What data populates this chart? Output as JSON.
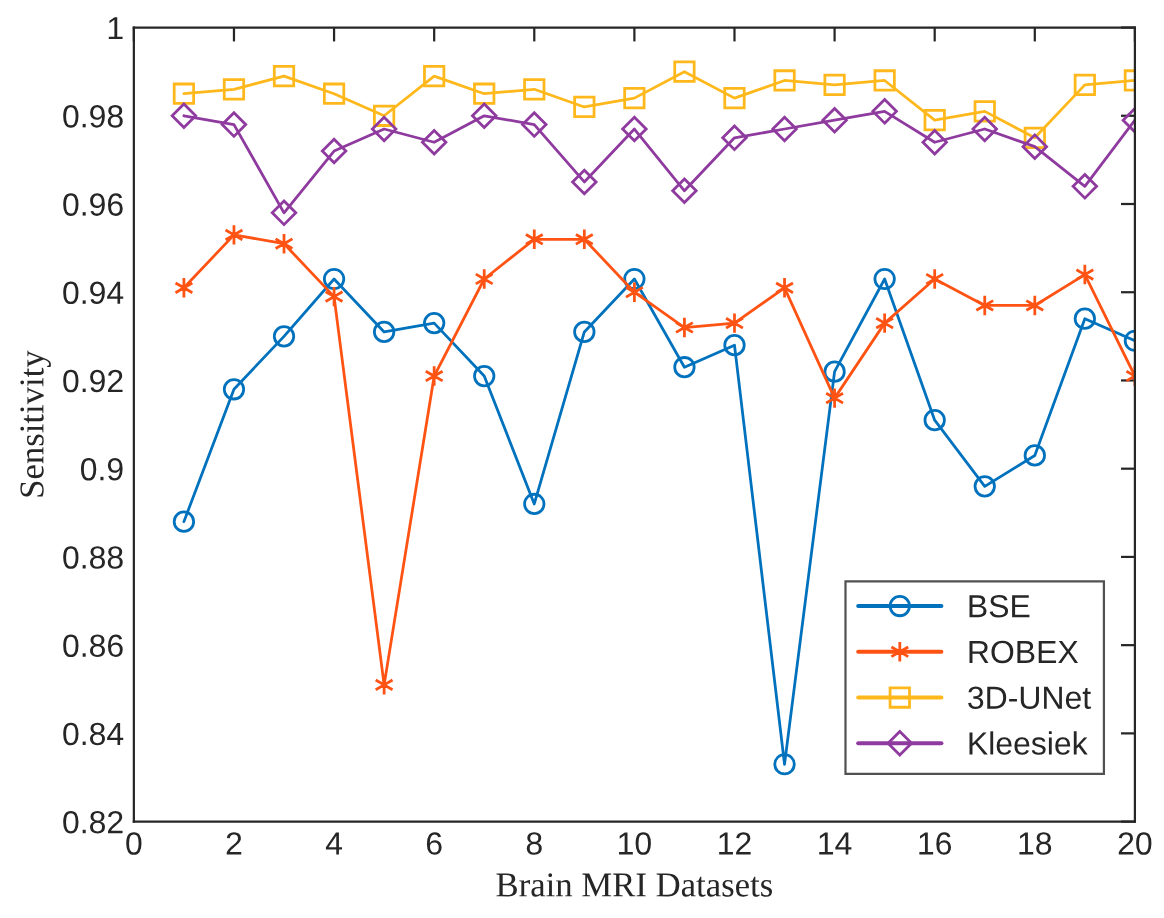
{
  "chart_data": {
    "type": "line",
    "xlabel": "Brain MRI Datasets",
    "ylabel": "Sensitivity",
    "x": [
      1,
      2,
      3,
      4,
      5,
      6,
      7,
      8,
      9,
      10,
      11,
      12,
      13,
      14,
      15,
      16,
      17,
      18,
      19,
      20
    ],
    "series": [
      {
        "name": "BSE",
        "color": "#0072bd",
        "marker": "circle",
        "values": [
          0.888,
          0.918,
          0.93,
          0.943,
          0.931,
          0.933,
          0.921,
          0.892,
          0.931,
          0.943,
          0.923,
          0.928,
          0.833,
          0.922,
          0.943,
          0.911,
          0.896,
          0.903,
          0.934,
          0.929
        ]
      },
      {
        "name": "ROBEX",
        "color": "#ff5314",
        "marker": "cross",
        "values": [
          0.941,
          0.953,
          0.951,
          0.939,
          0.851,
          0.921,
          0.943,
          0.952,
          0.952,
          0.94,
          0.932,
          0.933,
          0.941,
          0.916,
          0.933,
          0.943,
          0.937,
          0.937,
          0.944,
          0.921
        ]
      },
      {
        "name": "3D-UNet",
        "color": "#ffb81c",
        "marker": "square",
        "values": [
          0.985,
          0.986,
          0.989,
          0.985,
          0.98,
          0.989,
          0.985,
          0.986,
          0.982,
          0.984,
          0.99,
          0.984,
          0.988,
          0.987,
          0.988,
          0.979,
          0.981,
          0.975,
          0.987,
          0.988
        ]
      },
      {
        "name": "Kleesiek",
        "color": "#8e3a9e",
        "marker": "diamond",
        "values": [
          0.98,
          0.978,
          0.958,
          0.972,
          0.977,
          0.974,
          0.98,
          0.978,
          0.965,
          0.977,
          0.963,
          0.975,
          0.977,
          0.979,
          0.981,
          0.974,
          0.977,
          0.973,
          0.964,
          0.979
        ]
      }
    ],
    "xlim": [
      0,
      20
    ],
    "xticks": [
      0,
      2,
      4,
      6,
      8,
      10,
      12,
      14,
      16,
      18,
      20
    ],
    "ylim": [
      0.82,
      1
    ],
    "yticks": [
      {
        "value": 0.82,
        "label": "0.82"
      },
      {
        "value": 0.84,
        "label": "0.84"
      },
      {
        "value": 0.86,
        "label": "0.86"
      },
      {
        "value": 0.88,
        "label": "0.88"
      },
      {
        "value": 0.9,
        "label": "0.9"
      },
      {
        "value": 0.92,
        "label": "0.92"
      },
      {
        "value": 0.94,
        "label": "0.94"
      },
      {
        "value": 0.96,
        "label": "0.96"
      },
      {
        "value": 0.98,
        "label": "0.98"
      },
      {
        "value": 1,
        "label": "1"
      }
    ],
    "legend": "bottom right",
    "grid": false,
    "line_style": "solid"
  }
}
